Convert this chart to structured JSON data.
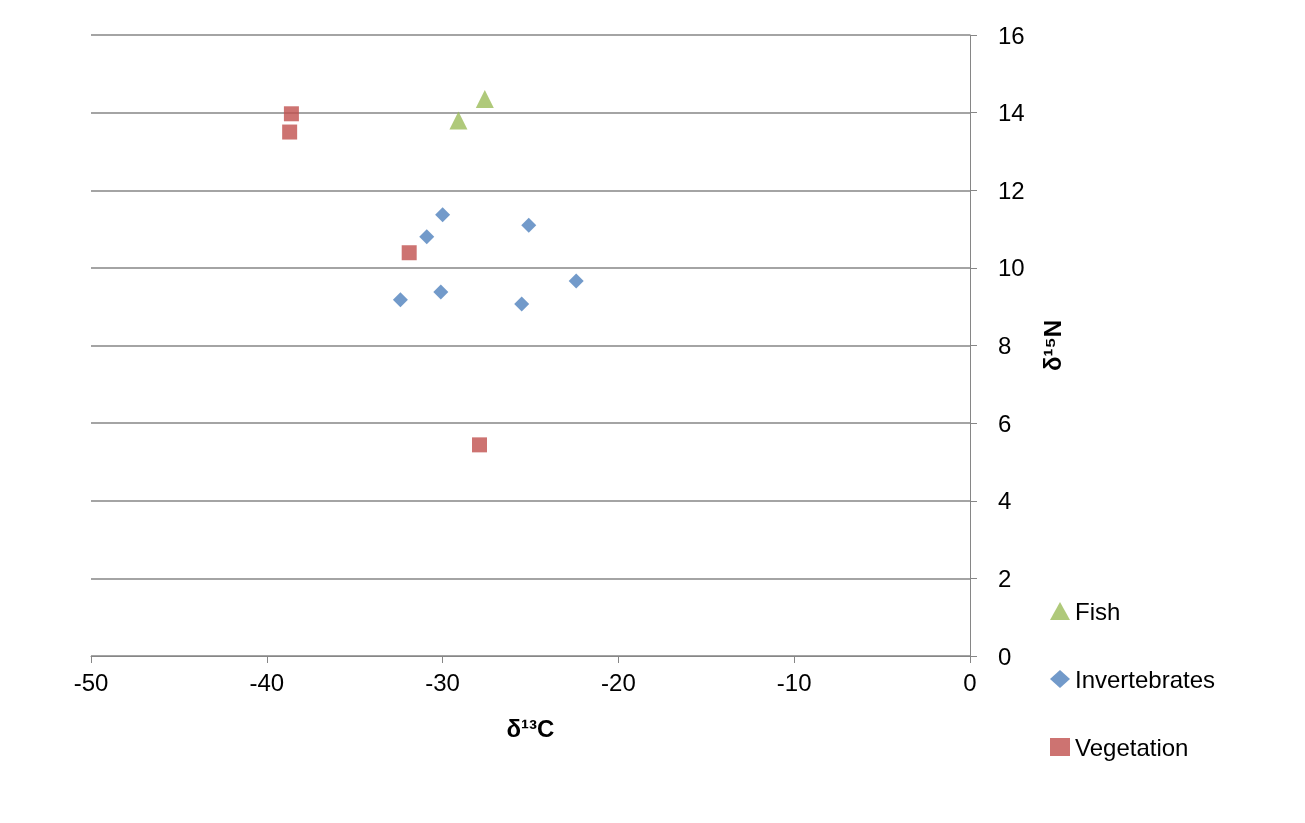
{
  "chart_data": {
    "type": "scatter",
    "xlabel": "δ¹³C",
    "ylabel": "δ¹⁵N",
    "xlim": [
      -50,
      0
    ],
    "xticks": [
      -50,
      -40,
      -30,
      -20,
      -10,
      0
    ],
    "ylim": [
      0,
      16
    ],
    "yticks": [
      0,
      2,
      4,
      6,
      8,
      10,
      12,
      14,
      16
    ],
    "grid": "y",
    "legend": "right",
    "series": [
      {
        "name": "Fish",
        "color": "#9bbb59",
        "marker": "triangle",
        "x": [
          -27.6,
          -29.1
        ],
        "values": [
          14.35,
          13.8
        ]
      },
      {
        "name": "Invertebrates",
        "color": "#4f81bd",
        "marker": "diamond",
        "x": [
          -30.0,
          -25.1,
          -30.9,
          -22.4,
          -30.1,
          -32.4,
          -25.5
        ],
        "values": [
          11.37,
          11.1,
          10.8,
          9.66,
          9.38,
          9.18,
          9.07
        ]
      },
      {
        "name": "Vegetation",
        "color": "#c0504d",
        "marker": "square",
        "x": [
          -38.6,
          -38.7,
          -31.9,
          -27.9
        ],
        "values": [
          13.97,
          13.5,
          10.39,
          5.44
        ]
      }
    ]
  }
}
